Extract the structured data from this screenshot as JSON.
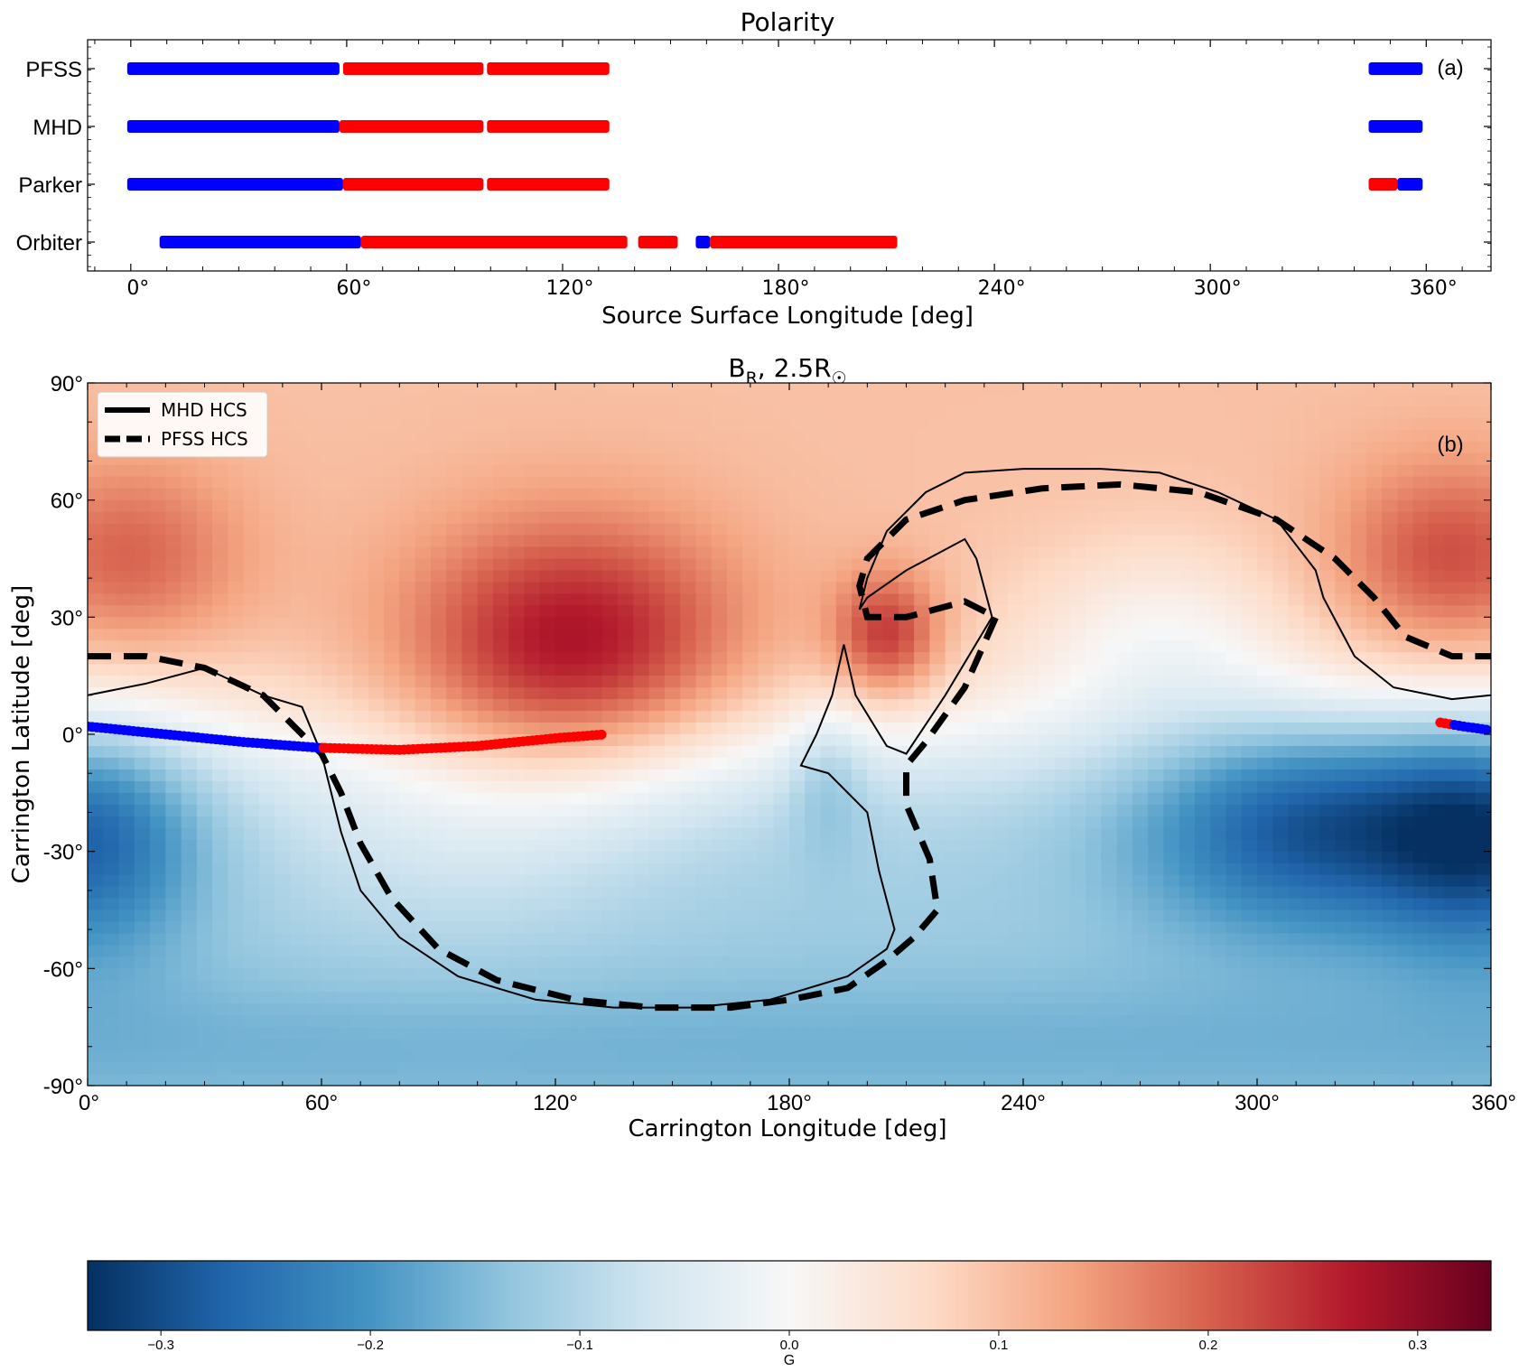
{
  "chart_data": [
    {
      "type": "scatter",
      "panel_label": "(a)",
      "title": "Polarity",
      "xlabel": "Source Surface Longitude [deg]",
      "xlim": [
        -12,
        378
      ],
      "x_ticks": [
        0,
        60,
        120,
        180,
        240,
        300,
        360
      ],
      "x_tick_labels": [
        "0°",
        "60°",
        "120°",
        "180°",
        "240°",
        "300°",
        "360°"
      ],
      "categories": [
        "PFSS",
        "MHD",
        "Parker",
        "Orbiter"
      ],
      "colors": {
        "positive": "#ff0000",
        "negative": "#0000ff"
      },
      "tracks": [
        {
          "name": "PFSS",
          "segments": [
            {
              "start": -1,
              "end": 58,
              "polarity": "negative"
            },
            {
              "start": 59,
              "end": 98,
              "polarity": "positive"
            },
            {
              "start": 99,
              "end": 133,
              "polarity": "positive"
            },
            {
              "start": 344,
              "end": 359,
              "polarity": "negative"
            }
          ]
        },
        {
          "name": "MHD",
          "segments": [
            {
              "start": -1,
              "end": 58,
              "polarity": "negative"
            },
            {
              "start": 58,
              "end": 98,
              "polarity": "positive"
            },
            {
              "start": 99,
              "end": 133,
              "polarity": "positive"
            },
            {
              "start": 344,
              "end": 359,
              "polarity": "negative"
            }
          ]
        },
        {
          "name": "Parker",
          "segments": [
            {
              "start": -1,
              "end": 59,
              "polarity": "negative"
            },
            {
              "start": 59,
              "end": 98,
              "polarity": "positive"
            },
            {
              "start": 99,
              "end": 133,
              "polarity": "positive"
            },
            {
              "start": 344,
              "end": 352,
              "polarity": "positive"
            },
            {
              "start": 352,
              "end": 359,
              "polarity": "negative"
            }
          ]
        },
        {
          "name": "Orbiter",
          "segments": [
            {
              "start": 8,
              "end": 64,
              "polarity": "negative"
            },
            {
              "start": 64,
              "end": 138,
              "polarity": "positive"
            },
            {
              "start": 141,
              "end": 152,
              "polarity": "positive"
            },
            {
              "start": 157,
              "end": 161,
              "polarity": "negative"
            },
            {
              "start": 161,
              "end": 213,
              "polarity": "positive"
            }
          ]
        }
      ]
    },
    {
      "type": "heatmap",
      "panel_label": "(b)",
      "title": "B",
      "title_subscript": "R",
      "title_suffix": ", 2.5R",
      "title_symbol": "☉",
      "xlabel": "Carrington Longitude [deg]",
      "ylabel": "Carrington Latitude [deg]",
      "xlim": [
        0,
        360
      ],
      "ylim": [
        -90,
        90
      ],
      "x_tick_labels": [
        "0°",
        "60°",
        "120°",
        "180°",
        "240°",
        "300°",
        "360°"
      ],
      "y_tick_labels": [
        "90°",
        "60°",
        "30°",
        "0°",
        "-30°",
        "-60°",
        "-90°"
      ],
      "legend": [
        {
          "name": "MHD HCS",
          "style": "solid"
        },
        {
          "name": "PFSS HCS",
          "style": "dashed"
        }
      ],
      "field_sources": [
        {
          "lon": 125,
          "lat": 22,
          "amplitude": 0.19,
          "sigma_lon": 42,
          "sigma_lat": 32
        },
        {
          "lon": 95,
          "lat": -20,
          "amplitude": 0.05,
          "sigma_lon": 50,
          "sigma_lat": 35
        },
        {
          "lon": 350,
          "lat": 45,
          "amplitude": 0.12,
          "sigma_lon": 30,
          "sigma_lat": 25
        },
        {
          "lon": 10,
          "lat": 45,
          "amplitude": 0.1,
          "sigma_lon": 30,
          "sigma_lat": 25
        },
        {
          "lon": 205,
          "lat": 25,
          "amplitude": 0.15,
          "sigma_lon": 14,
          "sigma_lat": 16
        },
        {
          "lon": 315,
          "lat": -22,
          "amplitude": -0.19,
          "sigma_lon": 45,
          "sigma_lat": 28
        },
        {
          "lon": 0,
          "lat": -25,
          "amplitude": -0.17,
          "sigma_lon": 28,
          "sigma_lat": 30
        },
        {
          "lon": 360,
          "lat": -25,
          "amplitude": -0.17,
          "sigma_lon": 28,
          "sigma_lat": 30
        },
        {
          "lon": 275,
          "lat": 25,
          "amplitude": -0.08,
          "sigma_lon": 35,
          "sigma_lat": 25
        },
        {
          "lon": 190,
          "lat": -10,
          "amplitude": -0.06,
          "sigma_lon": 10,
          "sigma_lat": 20
        }
      ],
      "field_background": {
        "north": 0.1,
        "south": -0.12
      },
      "mhd_hcs": [
        [
          0,
          10
        ],
        [
          15,
          13
        ],
        [
          30,
          17
        ],
        [
          45,
          10
        ],
        [
          55,
          7
        ],
        [
          60,
          -5
        ],
        [
          65,
          -25
        ],
        [
          70,
          -40
        ],
        [
          80,
          -52
        ],
        [
          95,
          -62
        ],
        [
          115,
          -68
        ],
        [
          135,
          -70
        ],
        [
          155,
          -70
        ],
        [
          175,
          -68
        ],
        [
          195,
          -62
        ],
        [
          205,
          -55
        ],
        [
          207,
          -50
        ],
        [
          203,
          -35
        ],
        [
          200,
          -20
        ],
        [
          190,
          -10
        ],
        [
          183,
          -8
        ],
        [
          187,
          0
        ],
        [
          191,
          10
        ],
        [
          194,
          23
        ],
        [
          197,
          10
        ],
        [
          205,
          -3
        ],
        [
          210,
          -5
        ],
        [
          220,
          10
        ],
        [
          232,
          30
        ],
        [
          228,
          45
        ],
        [
          225,
          50
        ],
        [
          210,
          42
        ],
        [
          200,
          35
        ],
        [
          198,
          32
        ],
        [
          200,
          40
        ],
        [
          205,
          52
        ],
        [
          215,
          62
        ],
        [
          225,
          67
        ],
        [
          240,
          68
        ],
        [
          260,
          68
        ],
        [
          275,
          67
        ],
        [
          290,
          62
        ],
        [
          305,
          55
        ],
        [
          315,
          42
        ],
        [
          317,
          35
        ],
        [
          325,
          20
        ],
        [
          335,
          12
        ],
        [
          350,
          9
        ],
        [
          360,
          10
        ]
      ],
      "pfss_hcs": [
        [
          0,
          20
        ],
        [
          15,
          20
        ],
        [
          30,
          17
        ],
        [
          45,
          10
        ],
        [
          55,
          0
        ],
        [
          60,
          -5
        ],
        [
          65,
          -15
        ],
        [
          70,
          -28
        ],
        [
          78,
          -42
        ],
        [
          90,
          -55
        ],
        [
          105,
          -63
        ],
        [
          125,
          -68
        ],
        [
          145,
          -70
        ],
        [
          165,
          -70
        ],
        [
          180,
          -68
        ],
        [
          195,
          -65
        ],
        [
          205,
          -58
        ],
        [
          212,
          -52
        ],
        [
          218,
          -45
        ],
        [
          216,
          -32
        ],
        [
          210,
          -18
        ],
        [
          210,
          -8
        ],
        [
          215,
          -2
        ],
        [
          225,
          12
        ],
        [
          233,
          30
        ],
        [
          225,
          34
        ],
        [
          210,
          30
        ],
        [
          200,
          30
        ],
        [
          198,
          38
        ],
        [
          200,
          45
        ],
        [
          210,
          55
        ],
        [
          225,
          60
        ],
        [
          245,
          63
        ],
        [
          265,
          64
        ],
        [
          285,
          62
        ],
        [
          305,
          55
        ],
        [
          320,
          45
        ],
        [
          330,
          35
        ],
        [
          338,
          25
        ],
        [
          350,
          20
        ],
        [
          360,
          20
        ]
      ],
      "trajectory": [
        {
          "lon": 0,
          "lat": 2,
          "polarity": "negative"
        },
        {
          "lon": 20,
          "lat": 0,
          "polarity": "negative"
        },
        {
          "lon": 40,
          "lat": -2,
          "polarity": "negative"
        },
        {
          "lon": 60,
          "lat": -3.5,
          "polarity": "negative"
        },
        {
          "lon": 61,
          "lat": -3.5,
          "polarity": "positive"
        },
        {
          "lon": 80,
          "lat": -4,
          "polarity": "positive"
        },
        {
          "lon": 100,
          "lat": -3,
          "polarity": "positive"
        },
        {
          "lon": 120,
          "lat": -1,
          "polarity": "positive"
        },
        {
          "lon": 133,
          "lat": 0,
          "polarity": "positive"
        },
        {
          "lon": 347,
          "lat": 3,
          "polarity": "positive"
        },
        {
          "lon": 353,
          "lat": 2,
          "polarity": "negative"
        },
        {
          "lon": 360,
          "lat": 1,
          "polarity": "negative"
        }
      ]
    },
    {
      "type": "colorbar",
      "label": "G",
      "range": [
        -0.335,
        0.335
      ],
      "tick_values": [
        -0.3,
        -0.2,
        -0.1,
        0.0,
        0.1,
        0.2,
        0.3
      ],
      "tick_labels": [
        "−0.3",
        "−0.2",
        "−0.1",
        "0.0",
        "0.1",
        "0.2",
        "0.3"
      ],
      "colormap": "RdBu_r",
      "colormap_stops": [
        "#053061",
        "#2166ac",
        "#4393c3",
        "#92c5de",
        "#d1e5f0",
        "#f7f7f7",
        "#fddbc7",
        "#f4a582",
        "#d6604d",
        "#b2182b",
        "#67001f"
      ]
    }
  ]
}
